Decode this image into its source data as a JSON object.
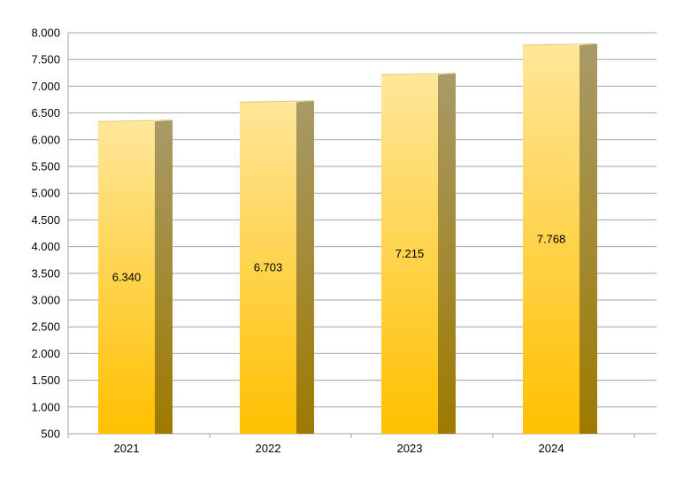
{
  "chart_data": {
    "type": "bar",
    "categories": [
      "2021",
      "2022",
      "2023",
      "2024"
    ],
    "values": [
      6340,
      6703,
      7215,
      7768
    ],
    "value_labels": [
      "6.340",
      "6.703",
      "7.215",
      "7.768"
    ],
    "ylim": [
      500,
      8000
    ],
    "yticks": [
      500,
      1000,
      1500,
      2000,
      2500,
      3000,
      3500,
      4000,
      4500,
      5000,
      5500,
      6000,
      6500,
      7000,
      7500,
      8000
    ],
    "ytick_labels": [
      "500",
      "1.000",
      "1.500",
      "2.000",
      "2.500",
      "3.000",
      "3.500",
      "4.000",
      "4.500",
      "5.000",
      "5.500",
      "6.000",
      "6.500",
      "7.000",
      "7.500",
      "8.000"
    ],
    "grid": true,
    "legend": "none",
    "title": "",
    "xlabel": "",
    "ylabel": "",
    "colors": {
      "bar_top": "#FFE69A",
      "bar_bottom": "#FFC000",
      "side_top": "#A89A68",
      "side_bottom": "#9E7A00",
      "grid": "#A6A6A6",
      "axis": "#A6A6A6"
    }
  }
}
